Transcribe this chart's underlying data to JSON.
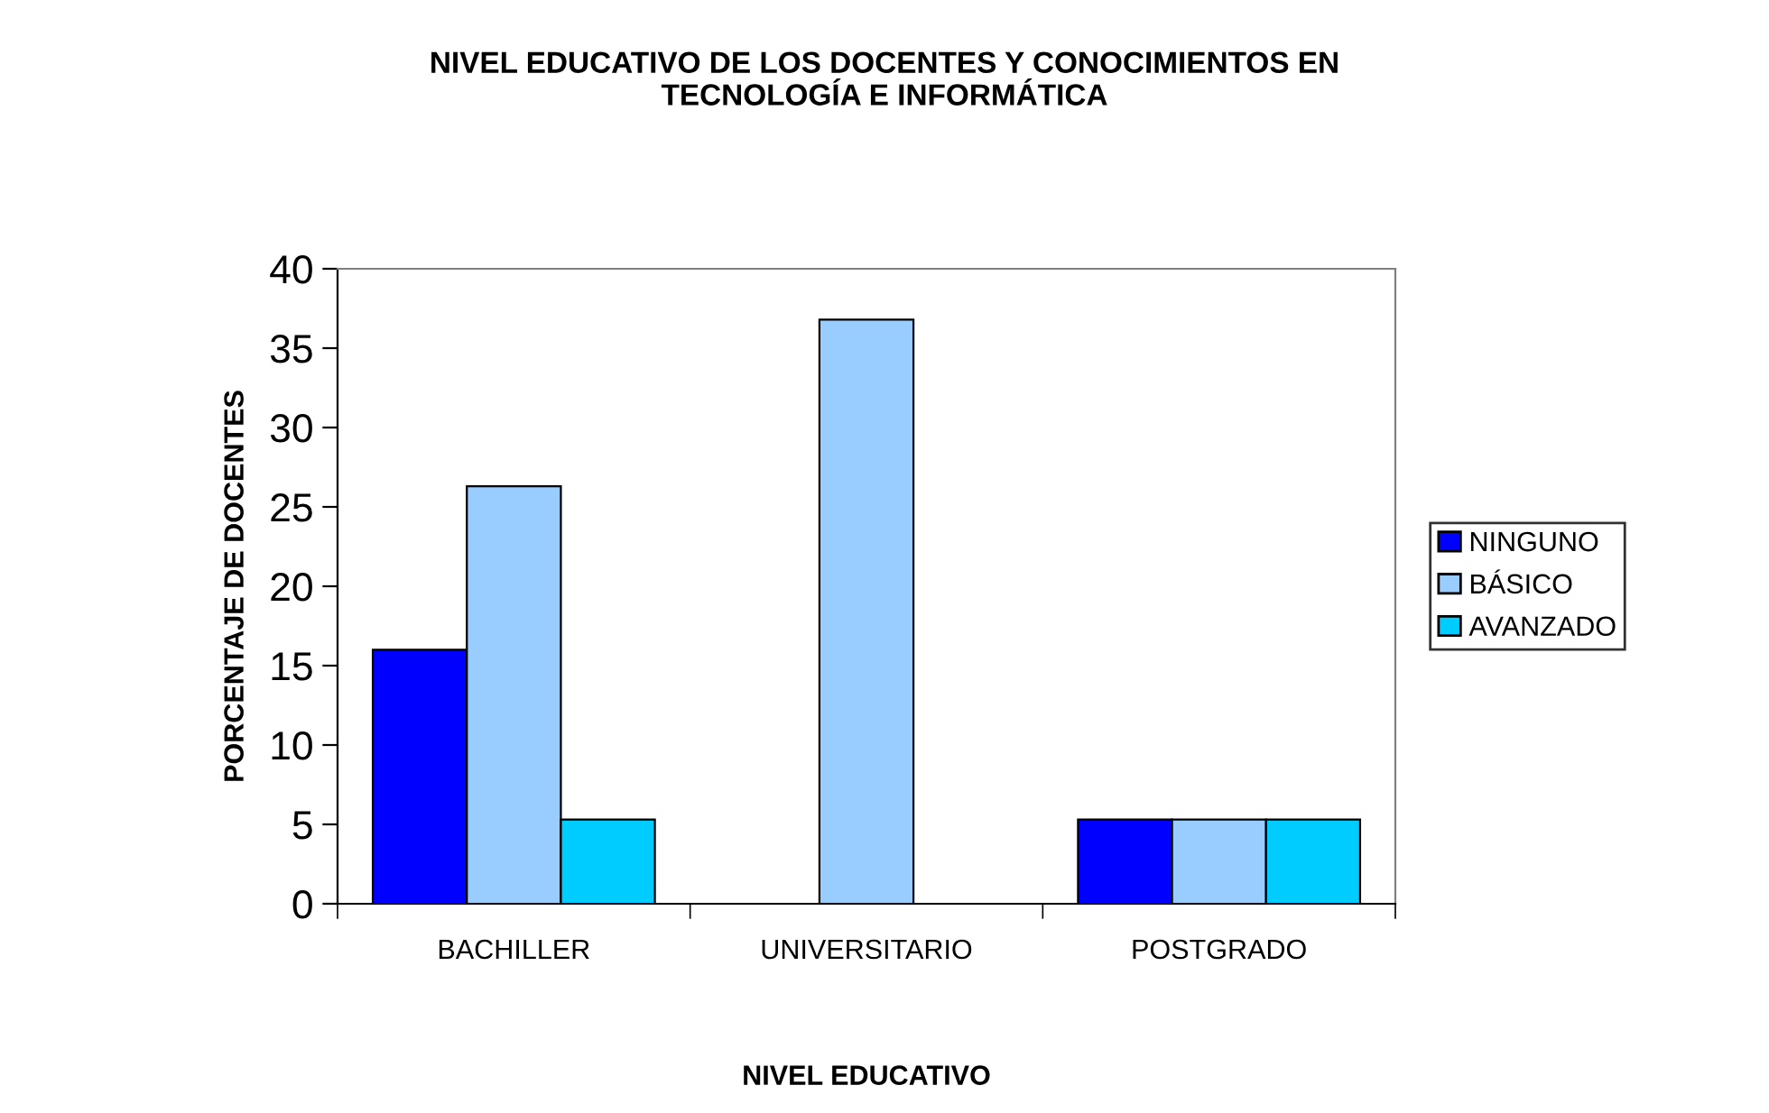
{
  "chart_data": {
    "type": "bar",
    "title": "NIVEL EDUCATIVO DE LOS DOCENTES Y CONOCIMIENTOS EN\nTECNOLOGÍA E INFORMÁTICA",
    "xlabel": "NIVEL EDUCATIVO",
    "ylabel": "PORCENTAJE DE DOCENTES",
    "categories": [
      "BACHILLER",
      "UNIVERSITARIO",
      "POSTGRADO"
    ],
    "series": [
      {
        "name": "NINGUNO",
        "color": "#0000ff",
        "values": [
          16,
          0,
          5.3
        ]
      },
      {
        "name": "BÁSICO",
        "color": "#99ccff",
        "values": [
          26.3,
          36.8,
          5.3
        ]
      },
      {
        "name": "AVANZADO",
        "color": "#00ccff",
        "values": [
          5.3,
          0,
          5.3
        ]
      }
    ],
    "ylim": [
      0,
      40
    ],
    "yticks": [
      0,
      5,
      10,
      15,
      20,
      25,
      30,
      35,
      40
    ],
    "grid": false,
    "legend": "right"
  }
}
